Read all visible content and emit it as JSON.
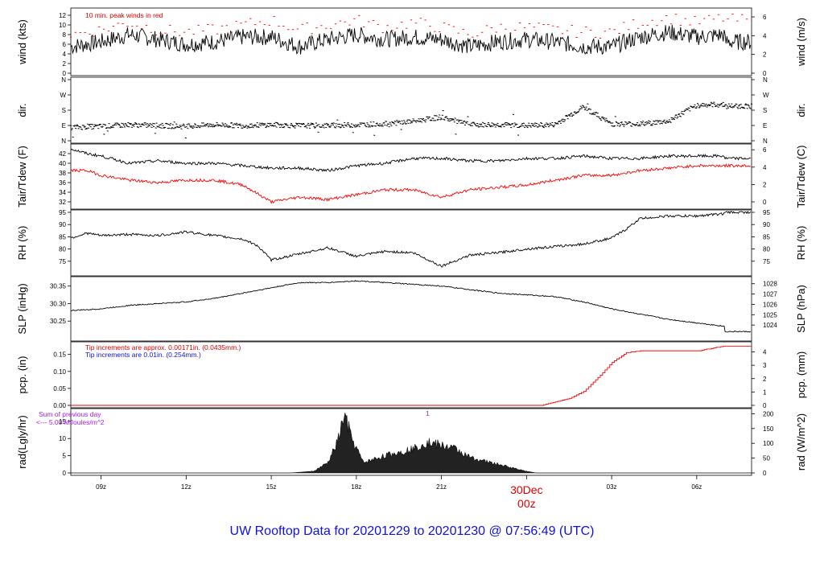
{
  "chart_data": {
    "type": "line",
    "title": "UW Rooftop Data for 20201229  to  20201230 @ 07:56:49  (UTC)",
    "x_ticks": [
      "09z",
      "12z",
      "15z",
      "18z",
      "21z",
      "00z",
      "03z",
      "06z"
    ],
    "day_label": "30Dec",
    "x_range_hours_utc": [
      "20201229 07:56",
      "20201230 07:56"
    ],
    "panels": [
      {
        "id": "wind",
        "ylabel_left": "wind (kts)",
        "ylabel_right": "wind (m/s)",
        "ylim": [
          0,
          13
        ],
        "left_ticks": [
          "0",
          "2",
          "4",
          "6",
          "8",
          "10",
          "12"
        ],
        "right_ticks": [
          "0",
          "2",
          "4",
          "6"
        ],
        "annotation": "10 min. peak winds in red",
        "series": [
          {
            "name": "wind",
            "color": "#000000",
            "x": [
              "07:56",
              "09:00",
              "10:00",
              "11:00",
              "12:00",
              "13:00",
              "14:00",
              "15:00",
              "16:00",
              "17:00",
              "18:00",
              "19:00",
              "20:00",
              "21:00",
              "22:00",
              "23:00",
              "00:00",
              "01:00",
              "02:00",
              "03:00",
              "04:00",
              "05:00",
              "06:00",
              "07:00",
              "07:56"
            ],
            "values": [
              5.5,
              6.5,
              8,
              7,
              6,
              6.5,
              7.5,
              7.5,
              5.5,
              7,
              8,
              7,
              7.5,
              7,
              5.5,
              6.5,
              7,
              6.5,
              5.5,
              5.5,
              7.5,
              8.5,
              7.5,
              8,
              6.5
            ]
          },
          {
            "name": "peak",
            "color": "#ff0000",
            "x": [
              "07:56",
              "09:00",
              "10:00",
              "11:00",
              "12:00",
              "13:00",
              "14:00",
              "15:00",
              "16:00",
              "17:00",
              "18:00",
              "19:00",
              "20:00",
              "21:00",
              "22:00",
              "23:00",
              "00:00",
              "01:00",
              "02:00",
              "03:00",
              "04:00",
              "05:00",
              "06:00",
              "07:00",
              "07:56"
            ],
            "values": [
              8,
              9,
              10.5,
              9,
              8.5,
              9,
              10,
              11,
              9,
              10,
              11,
              9.5,
              10.5,
              9.5,
              8,
              9.5,
              9.5,
              9,
              8.5,
              8.5,
              10.5,
              11.5,
              10.5,
              11.5,
              11
            ]
          }
        ]
      },
      {
        "id": "dir",
        "ylabel_left": "dir.",
        "ylabel_right": "dir.",
        "ylim": [
          0,
          360
        ],
        "left_ticks": [
          "N",
          "E",
          "S",
          "W",
          "N"
        ],
        "right_ticks": [
          "N",
          "E",
          "S",
          "W",
          "N"
        ],
        "series": [
          {
            "name": "direction (deg)",
            "color": "#000000",
            "x": [
              "07:56",
              "09:00",
              "10:00",
              "11:00",
              "12:00",
              "13:00",
              "14:00",
              "15:00",
              "16:00",
              "17:00",
              "18:00",
              "19:00",
              "20:00",
              "21:00",
              "22:00",
              "23:00",
              "00:00",
              "01:00",
              "02:00",
              "03:00",
              "04:00",
              "05:00",
              "06:00",
              "07:00",
              "07:56"
            ],
            "values": [
              80,
              85,
              95,
              90,
              85,
              95,
              90,
              95,
              90,
              90,
              95,
              100,
              115,
              140,
              95,
              95,
              90,
              95,
              200,
              100,
              100,
              115,
              210,
              215,
              205
            ]
          }
        ]
      },
      {
        "id": "temp",
        "ylabel_left": "Tair/Tdew (F)",
        "ylabel_right": "Tair/Tdew (C)",
        "ylim": [
          31,
          43.5
        ],
        "left_ticks": [
          "32",
          "34",
          "36",
          "38",
          "40",
          "42"
        ],
        "right_ticks": [
          "0",
          "2",
          "4",
          "6"
        ],
        "series": [
          {
            "name": "Tair",
            "color": "#000000",
            "x": [
              "07:56",
              "08:30",
              "09:00",
              "10:00",
              "11:00",
              "12:00",
              "13:00",
              "14:00",
              "15:00",
              "16:00",
              "17:00",
              "18:00",
              "19:00",
              "20:00",
              "21:00",
              "22:00",
              "23:00",
              "00:00",
              "01:00",
              "02:00",
              "03:00",
              "04:00",
              "05:00",
              "06:00",
              "07:00",
              "07:56"
            ],
            "values": [
              43,
              42,
              41.5,
              40,
              40.5,
              40,
              40,
              39.5,
              39,
              39,
              38.5,
              39.5,
              40,
              41,
              41,
              40.5,
              40.5,
              41,
              41,
              41.5,
              41,
              41,
              41.5,
              41.5,
              41.5,
              41
            ]
          },
          {
            "name": "Tdew",
            "color": "#ff0000",
            "x": [
              "07:56",
              "08:30",
              "09:00",
              "10:00",
              "11:00",
              "12:00",
              "13:00",
              "14:00",
              "15:00",
              "16:00",
              "17:00",
              "18:00",
              "19:00",
              "20:00",
              "21:00",
              "22:00",
              "23:00",
              "00:00",
              "01:00",
              "02:00",
              "03:00",
              "04:00",
              "05:00",
              "06:00",
              "07:00",
              "07:56"
            ],
            "values": [
              38.5,
              38.5,
              37.5,
              36.5,
              36,
              36.5,
              36.5,
              35.5,
              32,
              33,
              32.5,
              33.5,
              34.5,
              34.5,
              33,
              34.5,
              35,
              35.5,
              36.5,
              37.5,
              37.5,
              38.5,
              39,
              39.5,
              39.5,
              39.5
            ]
          }
        ]
      },
      {
        "id": "rh",
        "ylabel_left": "RH (%)",
        "ylabel_right": "RH (%)",
        "ylim": [
          70,
          95
        ],
        "left_ticks": [
          "75",
          "80",
          "85",
          "90",
          "95"
        ],
        "right_ticks": [
          "75",
          "80",
          "85",
          "90",
          "95"
        ],
        "series": [
          {
            "name": "RH",
            "color": "#000000",
            "x": [
              "07:56",
              "08:30",
              "09:00",
              "10:00",
              "11:00",
              "12:00",
              "13:00",
              "14:00",
              "14:30",
              "15:00",
              "16:00",
              "17:00",
              "18:00",
              "19:00",
              "20:00",
              "21:00",
              "22:00",
              "23:00",
              "00:00",
              "01:00",
              "02:00",
              "03:00",
              "03:30",
              "04:00",
              "05:00",
              "06:00",
              "07:00",
              "07:56"
            ],
            "values": [
              84.5,
              86.5,
              85.5,
              86,
              85.5,
              87,
              85.5,
              84,
              81.5,
              75.5,
              78,
              80.5,
              77,
              79,
              78.5,
              73,
              77.5,
              78.5,
              80,
              81,
              82,
              84.5,
              88,
              92.5,
              93.5,
              93.5,
              94.5,
              95
            ]
          }
        ]
      },
      {
        "id": "slp",
        "ylabel_left": "SLP (inHg)",
        "ylabel_right": "SLP (hPa)",
        "ylim": [
          30.2,
          30.37
        ],
        "left_ticks": [
          "30.25",
          "30.30",
          "30.35"
        ],
        "right_ticks": [
          "1024",
          "1025",
          "1026",
          "1027",
          "1028"
        ],
        "series": [
          {
            "name": "SLP",
            "color": "#000000",
            "x": [
              "07:56",
              "09:00",
              "10:00",
              "11:00",
              "12:00",
              "13:00",
              "14:00",
              "15:00",
              "16:00",
              "17:00",
              "18:00",
              "19:00",
              "20:00",
              "21:00",
              "22:00",
              "23:00",
              "00:00",
              "01:00",
              "02:00",
              "03:00",
              "04:00",
              "05:00",
              "06:00",
              "07:00",
              "07:56"
            ],
            "values": [
              30.28,
              30.285,
              30.295,
              30.3,
              30.305,
              30.315,
              30.33,
              30.345,
              30.36,
              30.36,
              30.365,
              30.36,
              30.355,
              30.35,
              30.34,
              30.33,
              30.325,
              30.32,
              30.305,
              30.285,
              30.27,
              30.255,
              30.245,
              30.235,
              30.22
            ]
          }
        ]
      },
      {
        "id": "pcp",
        "ylabel_left": "pcp. (in)",
        "ylabel_right": "pcp. (mm)",
        "ylim": [
          0,
          0.18
        ],
        "left_ticks": [
          "0.00",
          "0.05",
          "0.10",
          "0.15"
        ],
        "right_ticks": [
          "0",
          "1",
          "2",
          "3",
          "4"
        ],
        "annotation_red": "Tip increments are approx. 0.00171in. (0.0435mm.)",
        "annotation_blue": "Tip increments are 0.01in. (0.254mm.)",
        "series": [
          {
            "name": "pcp",
            "color": "#ff0000",
            "x": [
              "07:56",
              "00:30",
              "01:00",
              "01:30",
              "02:00",
              "02:30",
              "03:00",
              "03:30",
              "04:00",
              "05:00",
              "06:00",
              "07:00",
              "07:56"
            ],
            "values": [
              0,
              0,
              0.01,
              0.02,
              0.04,
              0.08,
              0.125,
              0.155,
              0.16,
              0.16,
              0.16,
              0.175,
              0.175
            ]
          }
        ]
      },
      {
        "id": "rad",
        "ylabel_left": "rad(Lgly/hr)",
        "ylabel_right": "rad (W/m^2)",
        "ylim": [
          0,
          18
        ],
        "left_ticks": [
          "0",
          "5",
          "10",
          "15"
        ],
        "right_ticks": [
          "0",
          "50",
          "100",
          "150",
          "200"
        ],
        "annotation": "Sum of previous day",
        "annotation2": "<--- 5.00 MJoules/m^2",
        "marker": "1",
        "series": [
          {
            "name": "radiation",
            "color": "#000000",
            "x": [
              "07:56",
              "15:40",
              "16:30",
              "17:00",
              "17:20",
              "17:35",
              "17:50",
              "18:15",
              "19:00",
              "20:00",
              "20:30",
              "21:00",
              "21:30",
              "22:00",
              "22:30",
              "23:00",
              "23:30",
              "00:00",
              "00:20",
              "07:56"
            ],
            "values": [
              0,
              0,
              0.5,
              3,
              9,
              17,
              10,
              3,
              5,
              7,
              9,
              8,
              7,
              4.5,
              3.5,
              2.5,
              1.5,
              0.5,
              0,
              0
            ]
          }
        ]
      }
    ]
  }
}
